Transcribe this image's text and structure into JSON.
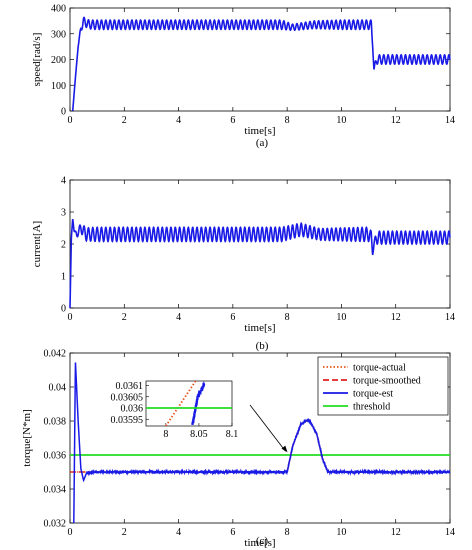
{
  "chart_data": [
    {
      "type": "line",
      "panel_caption": "(a)",
      "xlabel": "time[s]",
      "ylabel": "speed[rad/s]",
      "xlim": [
        0,
        14
      ],
      "ylim": [
        0,
        400
      ],
      "xticks": [
        "0",
        "2",
        "4",
        "6",
        "8",
        "10",
        "12",
        "14"
      ],
      "yticks": [
        "0",
        "100",
        "200",
        "300",
        "400"
      ],
      "grid": false,
      "series": [
        {
          "color": "#1a1ae6",
          "x": [
            0.1,
            0.2,
            0.3,
            0.4,
            0.5,
            0.6,
            0.8,
            1,
            2,
            4,
            6,
            7.8,
            8.2,
            9,
            10,
            11,
            11.1,
            11.15,
            11.2,
            11.3,
            11.5,
            12,
            13,
            14
          ],
          "y": [
            0,
            130,
            250,
            320,
            350,
            340,
            335,
            335,
            335,
            335,
            335,
            335,
            325,
            335,
            335,
            335,
            335,
            260,
            160,
            200,
            200,
            200,
            200,
            200
          ],
          "oscillation_amplitude": [
            0,
            0,
            0,
            15,
            15,
            15,
            18,
            18,
            18,
            18,
            18,
            18,
            12,
            15,
            18,
            18,
            18,
            10,
            10,
            18,
            18,
            18,
            18,
            18
          ],
          "oscillation_period": 0.16
        }
      ]
    },
    {
      "type": "line",
      "panel_caption": "(b)",
      "xlabel": "time[s]",
      "ylabel": "current[A]",
      "xlim": [
        0,
        14
      ],
      "ylim": [
        0,
        4
      ],
      "xticks": [
        "0",
        "2",
        "4",
        "6",
        "8",
        "10",
        "12",
        "14"
      ],
      "yticks": [
        "0",
        "1",
        "2",
        "3",
        "4"
      ],
      "grid": false,
      "series": [
        {
          "color": "#1a1ae6",
          "x": [
            0,
            0.05,
            0.1,
            0.15,
            0.25,
            0.4,
            0.6,
            1,
            2,
            4,
            6,
            7.8,
            8.5,
            9.2,
            10,
            11,
            11.1,
            11.15,
            11.2,
            11.3,
            11.5,
            12,
            13,
            14
          ],
          "y": [
            0,
            2.2,
            2.8,
            2.4,
            2.3,
            2.5,
            2.3,
            2.3,
            2.3,
            2.3,
            2.3,
            2.3,
            2.45,
            2.3,
            2.3,
            2.3,
            2.25,
            1.7,
            2.0,
            2.2,
            2.2,
            2.2,
            2.2,
            2.2
          ],
          "oscillation_amplitude": [
            0,
            0,
            0,
            0,
            0.1,
            0.15,
            0.2,
            0.22,
            0.22,
            0.22,
            0.22,
            0.22,
            0.2,
            0.18,
            0.2,
            0.22,
            0.15,
            0.05,
            0.1,
            0.2,
            0.2,
            0.2,
            0.2,
            0.2
          ],
          "oscillation_period": 0.16
        }
      ]
    },
    {
      "type": "line",
      "panel_caption": "(c)",
      "xlabel": "time[s]",
      "ylabel": "torque[N*m]",
      "xlim": [
        0,
        14
      ],
      "ylim": [
        0.032,
        0.042
      ],
      "xticks": [
        "0",
        "2",
        "4",
        "6",
        "8",
        "10",
        "12",
        "14"
      ],
      "yticks": [
        "0.032",
        "0.034",
        "0.036",
        "0.038",
        "0.04",
        "0.042"
      ],
      "grid": false,
      "legend_position": "top-right",
      "series": [
        {
          "name": "torque-actual",
          "color": "#e8531a",
          "style": "dotted",
          "x": [
            0,
            0.12,
            8.0,
            8.2,
            8.5,
            8.8,
            9.1,
            9.3,
            9.5,
            14
          ],
          "y": [
            0.035,
            0.035,
            0.035,
            0.0365,
            0.0378,
            0.0381,
            0.0372,
            0.0358,
            0.035,
            0.035
          ]
        },
        {
          "name": "torque-smoothed",
          "color": "#e02020",
          "style": "dashed",
          "x": [
            0,
            0.12,
            8.0,
            8.2,
            8.5,
            8.8,
            9.1,
            9.3,
            9.5,
            14
          ],
          "y": [
            0.035,
            0.035,
            0.035,
            0.0365,
            0.0378,
            0.0381,
            0.0372,
            0.0358,
            0.035,
            0.035
          ]
        },
        {
          "name": "torque-est",
          "color": "#1a1ae6",
          "style": "solid",
          "x": [
            0.14,
            0.2,
            0.3,
            0.4,
            0.5,
            0.6,
            1,
            2,
            4,
            6,
            7.9,
            8.0,
            8.2,
            8.5,
            8.8,
            9.1,
            9.3,
            9.5,
            9.6,
            11,
            14
          ],
          "y": [
            0.032,
            0.0415,
            0.038,
            0.0352,
            0.0345,
            0.0349,
            0.035,
            0.035,
            0.035,
            0.035,
            0.035,
            0.035,
            0.0365,
            0.0378,
            0.0381,
            0.0372,
            0.0358,
            0.035,
            0.035,
            0.035,
            0.035
          ],
          "noise_amplitude": 6e-05
        },
        {
          "name": "threshold",
          "color": "#22dd22",
          "style": "solid",
          "x": [
            0,
            14
          ],
          "y": [
            0.036,
            0.036
          ]
        }
      ],
      "inset": {
        "xlim": [
          7.97,
          8.1
        ],
        "ylim": [
          0.03592,
          0.03612
        ],
        "xticks": [
          "8",
          "8.05",
          "8.1"
        ],
        "yticks": [
          "0.03595",
          "0.036",
          "0.03605",
          "0.0361"
        ],
        "series": [
          {
            "name": "torque-actual",
            "x": [
              8.0,
              8.045
            ],
            "y": [
              0.03592,
              0.03612
            ]
          },
          {
            "name": "torque-est",
            "x": [
              8.04,
              8.048,
              8.055,
              8.058
            ],
            "y": [
              0.03592,
              0.03605,
              0.03609,
              0.0361
            ]
          },
          {
            "name": "threshold",
            "x": [
              7.97,
              8.1
            ],
            "y": [
              0.036,
              0.036
            ]
          }
        ]
      }
    }
  ]
}
